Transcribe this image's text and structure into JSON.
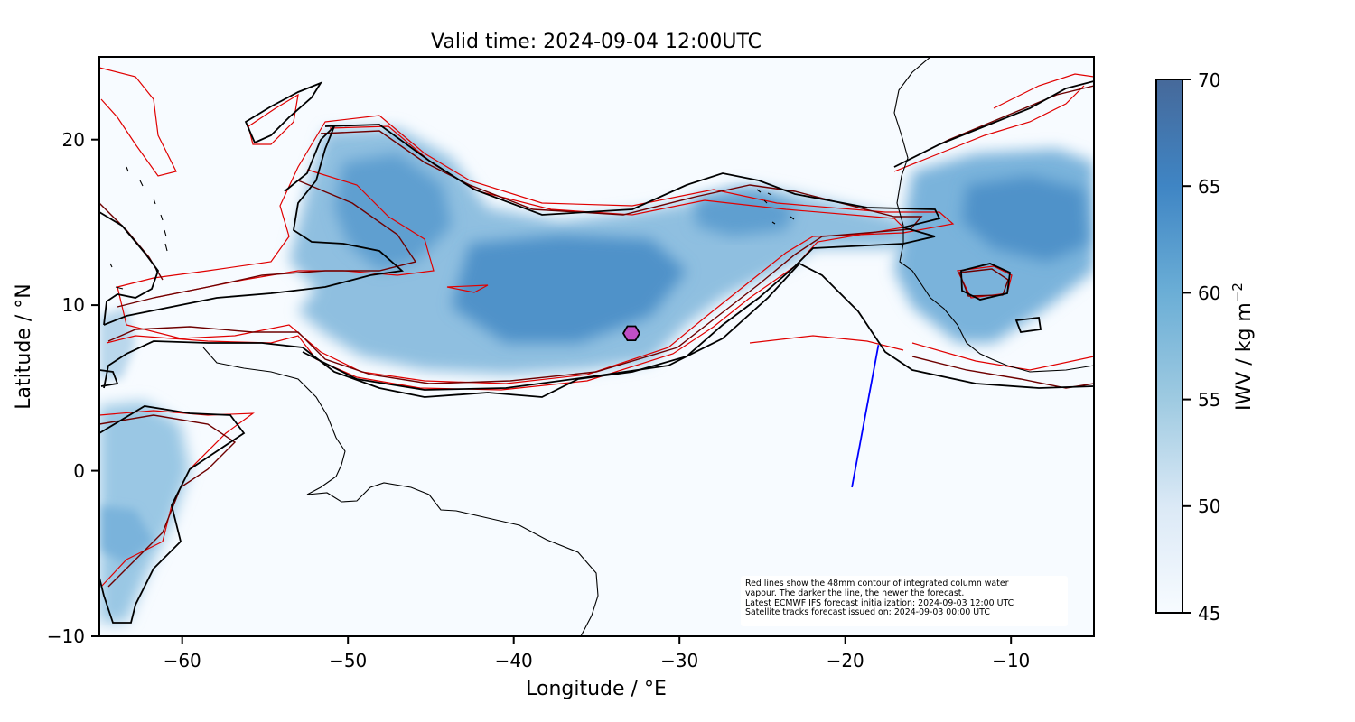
{
  "title": "Valid time: 2024-09-04 12:00UTC",
  "x_axis": {
    "label": "Longitude / °E",
    "ticks": [
      -60,
      -50,
      -40,
      -30,
      -20,
      -10
    ],
    "tick_labels": [
      "−60",
      "−50",
      "−40",
      "−30",
      "−20",
      "−10"
    ]
  },
  "y_axis": {
    "label": "Latitude / °N",
    "ticks": [
      20,
      10,
      0,
      -10
    ],
    "tick_labels": [
      "20",
      "10",
      "0",
      "−10"
    ]
  },
  "colorbar": {
    "label": "IWV / kg m",
    "label_sup": "−2",
    "ticks": [
      70,
      65,
      60,
      55,
      50,
      45
    ],
    "tick_labels": [
      "70",
      "65",
      "60",
      "55",
      "50",
      "45"
    ],
    "colormap": "Blues",
    "range": [
      45,
      70
    ]
  },
  "annotation_lines": [
    "Red lines show the 48mm contour of integrated column water",
    "vapour. The darker the line, the newer the forecast.",
    "Latest ECMWF IFS forecast initialization: 2024-09-03 12:00 UTC",
    "Satellite tracks forecast issued on: 2024-09-03 00:00 UTC"
  ],
  "chart_data": {
    "type": "map",
    "extent": {
      "lon": [
        -65,
        -5
      ],
      "lat": [
        -10,
        25
      ]
    },
    "marker": {
      "lon": -32.9,
      "lat": 8.3,
      "shape": "hexagon",
      "color": "#c04fc6"
    },
    "satellite_track": {
      "color": "#0000ff",
      "points": [
        [
          -19.6,
          -1.0
        ],
        [
          -18.0,
          7.6
        ]
      ]
    },
    "contour_colors": [
      "#000000",
      "#3a0000",
      "#6e0000",
      "#a00000",
      "#e00000"
    ]
  }
}
